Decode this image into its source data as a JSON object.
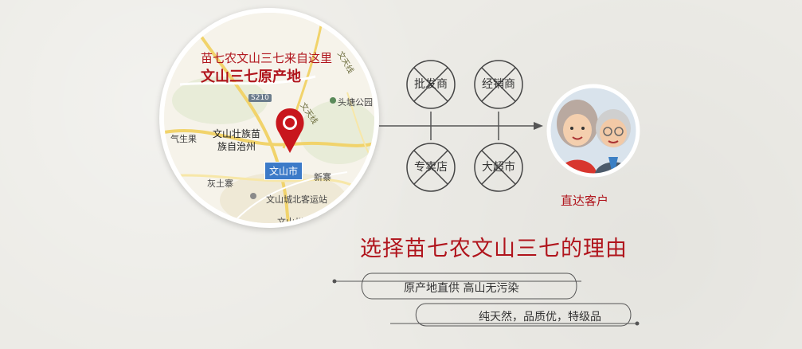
{
  "map": {
    "title_line1": "苗七农文山三七来自这里",
    "title_line2": "文山三七原产地",
    "county": "文山壮族苗族自治州",
    "city": "文山市",
    "road_sign": "S210",
    "labels": {
      "qishengguo": "气生果",
      "huitu": "灰土寨",
      "xinzhai": "新寨",
      "toutang": "头塘公园",
      "station": "文山城北客运站",
      "museum": "文山州博物馆",
      "wentian1": "文天线",
      "wentian2": "文天线"
    }
  },
  "channels": [
    "批发商",
    "经销商",
    "专卖店",
    "大超市"
  ],
  "customer_label": "直达客户",
  "heading": "选择苗七农文山三七的理由",
  "reasons": [
    "原产地直供 高山无污染",
    "纯天然，品质优，特级品"
  ],
  "colors": {
    "accent_red": "#b0141c",
    "line": "#555555"
  }
}
